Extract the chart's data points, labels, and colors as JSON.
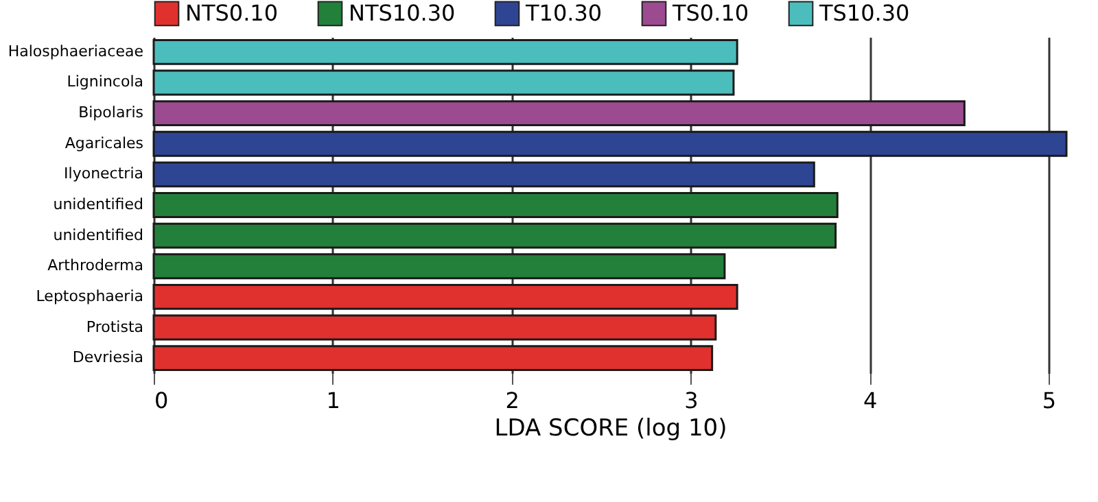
{
  "chart_data": {
    "type": "bar",
    "orientation": "horizontal",
    "xlabel": "LDA SCORE (log 10)",
    "categories": [
      "Halosphaeriaceae",
      "Lignincola",
      "Bipolaris",
      "Agaricales",
      "Ilyonectria",
      "unidentified",
      "unidentified",
      "Arthroderma",
      "Leptosphaeria",
      "Protista",
      "Devriesia"
    ],
    "series": [
      {
        "name": "NTS0.10",
        "color": "#e0312e",
        "values": [
          null,
          null,
          null,
          null,
          null,
          null,
          null,
          null,
          3.26,
          3.14,
          3.12
        ]
      },
      {
        "name": "NTS10.30",
        "color": "#23803a",
        "values": [
          null,
          null,
          null,
          null,
          null,
          3.82,
          3.81,
          3.19,
          null,
          null,
          null
        ]
      },
      {
        "name": "T10.30",
        "color": "#2e4594",
        "values": [
          null,
          null,
          null,
          5.1,
          3.69,
          null,
          null,
          null,
          null,
          null,
          null
        ]
      },
      {
        "name": "TS0.10",
        "color": "#9c4b91",
        "values": [
          null,
          null,
          4.53,
          null,
          null,
          null,
          null,
          null,
          null,
          null,
          null
        ]
      },
      {
        "name": "TS10.30",
        "color": "#4cbdbd",
        "values": [
          3.26,
          3.24,
          null,
          null,
          null,
          null,
          null,
          null,
          null,
          null,
          null
        ]
      }
    ],
    "xlim": [
      0,
      5.1
    ],
    "xticks": [
      0,
      1,
      2,
      3,
      4,
      5
    ],
    "grid": "x",
    "legend": "top"
  }
}
